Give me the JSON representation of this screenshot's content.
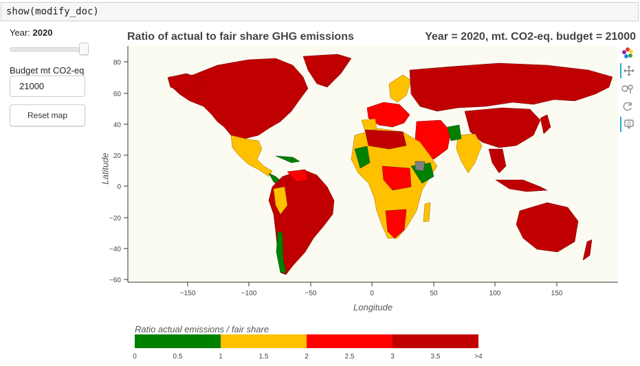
{
  "code_cell": {
    "text": "show(modify_doc)"
  },
  "widgets": {
    "year_label": "Year: ",
    "year_value": "2020",
    "year_slider_fraction": 0.95,
    "budget_label": "Budget mt CO2-eq",
    "budget_value": "21000",
    "reset_label": "Reset map"
  },
  "plot": {
    "title_left": "Ratio of actual to fair share GHG emissions",
    "title_right": "Year = 2020, mt. CO2-eq. budget = 21000",
    "xlabel": "Longitude",
    "ylabel": "Latitude",
    "x_ticks": [
      "−150",
      "−100",
      "−50",
      "0",
      "50",
      "100",
      "150"
    ],
    "y_ticks": [
      "80",
      "60",
      "40",
      "20",
      "0",
      "−20",
      "−40",
      "−60"
    ]
  },
  "toolbar": {
    "items": [
      "bokeh-logo-icon",
      "pan-icon",
      "wheel-zoom-icon",
      "reset-icon",
      "hover-icon"
    ]
  },
  "colorbar": {
    "title": "Ratio actual emissions / fair share",
    "colors": [
      "#008000",
      "#ffc000",
      "#ff0000",
      "#c00000"
    ],
    "ticks": [
      "0",
      "0.5",
      "1",
      "1.5",
      "2",
      "2.5",
      "3",
      "3.5",
      ">4"
    ]
  },
  "colors": {
    "ratio_0_1": "#008000",
    "ratio_1_2": "#ffc000",
    "ratio_2_3": "#ff0000",
    "ratio_3_4": "#c00000",
    "no_data": "#808080",
    "plot_background": "#fbfbf2"
  }
}
